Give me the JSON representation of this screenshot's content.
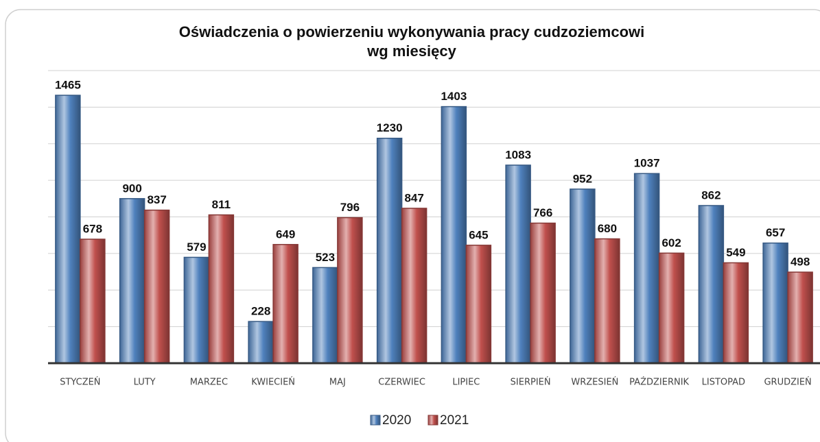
{
  "chart_data": {
    "type": "bar",
    "title": "Oświadczenia o powierzeniu wykonywania pracy cudzoziemcowi",
    "subtitle": "wg miesięcy",
    "categories": [
      "STYCZEŃ",
      "LUTY",
      "MARZEC",
      "KWIECIEŃ",
      "MAJ",
      "CZERWIEC",
      "LIPIEC",
      "SIERPIEŃ",
      "WRZESIEŃ",
      "PAŹDZIERNIK",
      "LISTOPAD",
      "GRUDZIEŃ"
    ],
    "series": [
      {
        "name": "2020",
        "color": "#4f81bd",
        "values": [
          1465,
          900,
          579,
          228,
          523,
          1230,
          1403,
          1083,
          952,
          1037,
          862,
          657
        ]
      },
      {
        "name": "2021",
        "color": "#c0504d",
        "values": [
          678,
          837,
          811,
          649,
          796,
          847,
          645,
          766,
          680,
          602,
          549,
          498
        ]
      }
    ],
    "ylim": [
      0,
      1600
    ],
    "yticks": [
      0,
      200,
      400,
      600,
      800,
      1000,
      1200,
      1400,
      1600
    ],
    "grid": true
  }
}
